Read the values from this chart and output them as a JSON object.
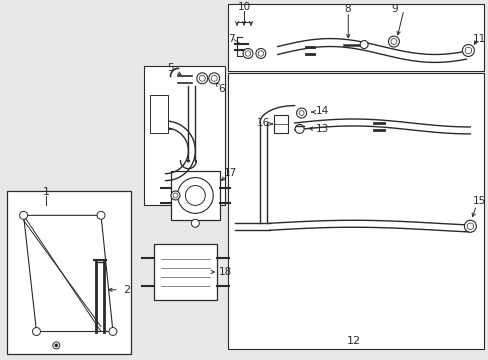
{
  "bg_color": "#e8e8e8",
  "white": "#ffffff",
  "dark": "#2a2a2a",
  "fig_w": 4.89,
  "fig_h": 3.6,
  "dpi": 100
}
